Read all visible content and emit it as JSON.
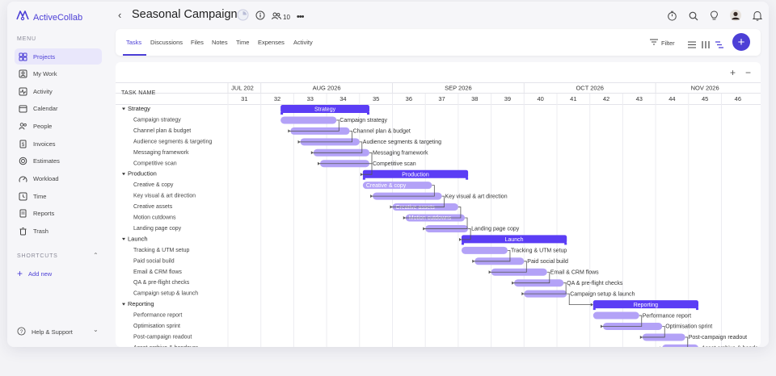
{
  "app": {
    "name": "ActiveCollab",
    "brand_color": "#4c3fd6"
  },
  "sidebar": {
    "menu_heading": "MENU",
    "items": [
      {
        "label": "Projects",
        "icon": "folder-icon",
        "active": true
      },
      {
        "label": "My Work",
        "icon": "person-card-icon",
        "active": false
      },
      {
        "label": "Activity",
        "icon": "pulse-icon",
        "active": false
      },
      {
        "label": "Calendar",
        "icon": "calendar-icon",
        "active": false
      },
      {
        "label": "People",
        "icon": "people-icon",
        "active": false
      },
      {
        "label": "Invoices",
        "icon": "invoice-icon",
        "active": false
      },
      {
        "label": "Estimates",
        "icon": "estimate-icon",
        "active": false
      },
      {
        "label": "Workload",
        "icon": "workload-icon",
        "active": false
      },
      {
        "label": "Time",
        "icon": "clock-icon",
        "active": false
      },
      {
        "label": "Reports",
        "icon": "report-icon",
        "active": false
      },
      {
        "label": "Trash",
        "icon": "trash-icon",
        "active": false
      }
    ],
    "shortcuts_heading": "SHORTCUTS",
    "add_new": "Add new",
    "help": "Help & Support"
  },
  "header": {
    "title": "Seasonal Campaign",
    "people_count": "10"
  },
  "tabs": [
    "Tasks",
    "Discussions",
    "Files",
    "Notes",
    "Time",
    "Expenses",
    "Activity"
  ],
  "toolbar": {
    "filter_label": "Filter"
  },
  "gantt": {
    "task_column_header": "TASK NAME",
    "months": [
      {
        "label": "JUL 202",
        "start_week": 31,
        "end_week": 31
      },
      {
        "label": "AUG 2026",
        "start_week": 32,
        "end_week": 35
      },
      {
        "label": "SEP 2026",
        "start_week": 36,
        "end_week": 39
      },
      {
        "label": "OCT 2026",
        "start_week": 40,
        "end_week": 43
      },
      {
        "label": "NOV 2026",
        "start_week": 44,
        "end_week": 46
      }
    ],
    "weeks": [
      "31",
      "32",
      "33",
      "34",
      "35",
      "36",
      "37",
      "38",
      "39",
      "40",
      "41",
      "42",
      "43",
      "44",
      "45",
      "46"
    ],
    "first_week": 31,
    "groups": [
      {
        "name": "Strategy",
        "start": 32.6,
        "end": 35.3,
        "tasks": [
          {
            "name": "Campaign strategy",
            "start": 32.6,
            "end": 34.3,
            "dep_to": 0
          },
          {
            "name": "Channel plan & budget",
            "start": 32.9,
            "end": 34.7,
            "dep_to": 1
          },
          {
            "name": "Audience segments & targeting",
            "start": 33.2,
            "end": 35.0,
            "dep_to": 2
          },
          {
            "name": "Messaging framework",
            "start": 33.6,
            "end": 35.3,
            "dep_to": 3
          },
          {
            "name": "Competitive scan",
            "start": 33.8,
            "end": 35.3,
            "dep_to": null
          }
        ]
      },
      {
        "name": "Production",
        "start": 35.1,
        "end": 38.3,
        "tasks": [
          {
            "name": "Creative & copy",
            "start": 35.1,
            "end": 37.2,
            "dep_to": null
          },
          {
            "name": "Key visual & art direction",
            "start": 35.4,
            "end": 37.5,
            "dep_to": null
          },
          {
            "name": "Creative assets",
            "start": 36.0,
            "end": 38.0,
            "dep_to": null
          },
          {
            "name": "Motion cutdowns",
            "start": 36.4,
            "end": 38.2,
            "dep_to": null
          },
          {
            "name": "Landing page copy",
            "start": 37.0,
            "end": 38.3,
            "dep_to": null
          }
        ]
      },
      {
        "name": "Launch",
        "start": 38.1,
        "end": 41.3,
        "tasks": [
          {
            "name": "Tracking & UTM setup",
            "start": 38.1,
            "end": 39.5,
            "dep_to": null
          },
          {
            "name": "Paid social build",
            "start": 38.5,
            "end": 40.0,
            "dep_to": null
          },
          {
            "name": "Email & CRM flows",
            "start": 39.0,
            "end": 40.7,
            "dep_to": null
          },
          {
            "name": "QA & pre-flight checks",
            "start": 39.7,
            "end": 41.2,
            "dep_to": null
          },
          {
            "name": "Campaign setup & launch",
            "start": 40.0,
            "end": 41.3,
            "dep_to": null
          }
        ]
      },
      {
        "name": "Reporting",
        "start": 42.1,
        "end": 45.3,
        "tasks": [
          {
            "name": "Performance report",
            "start": 42.1,
            "end": 43.5,
            "dep_to": null
          },
          {
            "name": "Optimisation sprint",
            "start": 42.4,
            "end": 44.2,
            "dep_to": null
          },
          {
            "name": "Post-campaign readout",
            "start": 43.6,
            "end": 44.9,
            "dep_to": null
          },
          {
            "name": "Asset archive & handover",
            "start": 44.2,
            "end": 45.3,
            "dep_to": null
          }
        ]
      }
    ],
    "inbar_label_tasks": [
      "Creative & copy",
      "Creative assets",
      "Motion cutdowns"
    ],
    "colors": {
      "group_bar": "#5b3df5",
      "task_bar": "#b3a2f7",
      "connector": "#555555",
      "grid": "#ececf1"
    }
  }
}
